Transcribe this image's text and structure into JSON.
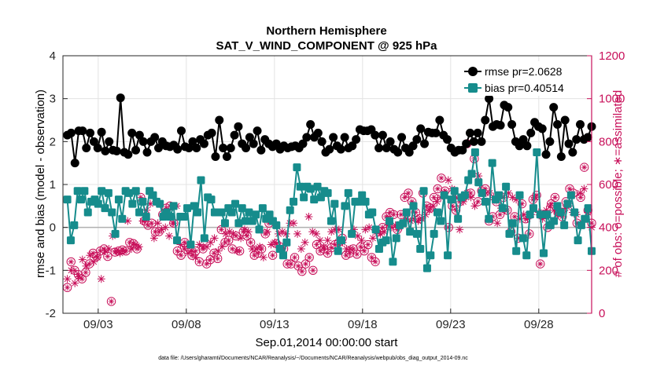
{
  "chart_data": {
    "type": "line",
    "title": "Northern Hemisphere",
    "subtitle": "SAT_V_WIND_COMPONENT @ 925 hPa",
    "xlabel": "Sep.01,2014 00:00:00 start",
    "ylabel": "rmse and bias (model - observation)",
    "ylabel_right": "# of obs: o=possible; ∗=assimilated",
    "ylim": [
      -2,
      4
    ],
    "ylim_right": [
      0,
      1200
    ],
    "xlim": [
      0,
      30
    ],
    "yticks": [
      -2,
      -1,
      0,
      1,
      2,
      3,
      4
    ],
    "yticks_right": [
      0,
      200,
      400,
      600,
      800,
      1000,
      1200
    ],
    "xticks": [
      {
        "value": 2,
        "label": "09/03"
      },
      {
        "value": 7,
        "label": "09/08"
      },
      {
        "value": 12,
        "label": "09/13"
      },
      {
        "value": 17,
        "label": "09/18"
      },
      {
        "value": 22,
        "label": "09/23"
      },
      {
        "value": 27,
        "label": "09/28"
      }
    ],
    "footnote": "data file: /Users/gharamti/Documents/NCAR/Reanalysis/~/Documents/NCAR/Reanalysis/webpub/obs_diag_output_2014-09.nc",
    "legend": [
      {
        "label": "rmse pr=2.0628",
        "color": "#000000"
      },
      {
        "label": "bias pr=0.40514",
        "color": "#168c8c"
      }
    ],
    "colors": {
      "rmse": "#000000",
      "bias": "#168c8c",
      "obs": "#c8105a",
      "zero_line": "#b0b0b0"
    },
    "series": [
      {
        "name": "rmse",
        "values": [
          2.15,
          2.2,
          1.5,
          2.25,
          2.25,
          1.85,
          2.2,
          2.0,
          1.85,
          2.22,
          1.78,
          2.0,
          1.8,
          1.78,
          3.02,
          1.75,
          1.7,
          2.2,
          1.8,
          2.15,
          2.0,
          1.75,
          2.0,
          2.1,
          1.85,
          2.0,
          1.9,
          1.88,
          1.92,
          1.82,
          2.25,
          1.88,
          1.85,
          2.0,
          1.85,
          2.05,
          1.95,
          2.15,
          2.2,
          1.65,
          2.5,
          1.85,
          1.65,
          1.85,
          2.15,
          2.35,
          1.95,
          1.85,
          2.1,
          1.95,
          2.25,
          1.8,
          2.05,
          1.95,
          1.88,
          1.95,
          1.82,
          1.9,
          1.85,
          1.88,
          1.9,
          1.85,
          1.95,
          2.1,
          2.4,
          2.1,
          2.2,
          2.0,
          1.75,
          1.82,
          2.1,
          1.9,
          1.82,
          2.1,
          1.85,
          1.9,
          2.05,
          2.28,
          2.25,
          2.25,
          2.28,
          2.15,
          1.85,
          2.15,
          1.85,
          2.0,
          1.82,
          1.75,
          2.1,
          1.85,
          1.75,
          1.9,
          2.05,
          2.3,
          1.95,
          2.22,
          2.2,
          2.2,
          2.5,
          2.15,
          2.05,
          1.85,
          1.75,
          1.8,
          1.8,
          1.95,
          2.2,
          2.0,
          2.2,
          2.0,
          2.5,
          3.0,
          2.35,
          2.4,
          2.38,
          2.85,
          2.8,
          2.4,
          2.0,
          1.9,
          2.05,
          1.9,
          2.2,
          2.45,
          2.35,
          2.3,
          1.7,
          2.0,
          2.8,
          2.4,
          1.65,
          2.5,
          1.95,
          1.75,
          2.05,
          2.4,
          2.05,
          2.1,
          2.35
        ]
      },
      {
        "name": "bias",
        "values": [
          0.65,
          -0.3,
          0.05,
          0.85,
          0.65,
          0.85,
          0.35,
          0.6,
          0.65,
          0.55,
          0.85,
          0.45,
          0.8,
          0.35,
          -0.15,
          0.65,
          0.2,
          0.85,
          0.8,
          0.55,
          0.85,
          0.35,
          0.6,
          0.25,
          0.85,
          0.75,
          0.6,
          0.55,
          0.25,
          0.35,
          0.25,
          0.5,
          -0.3,
          0.25,
          0.25,
          0.45,
          -0.4,
          0.5,
          0.35,
          1.1,
          -0.25,
          0.7,
          0.65,
          0.35,
          0.35,
          0.35,
          0.1,
          0.45,
          0.35,
          0.55,
          0.1,
          0.45,
          0.15,
          0.35,
          0.15,
          0.3,
          -0.05,
          0.45,
          0.2,
          0.3,
          0.15,
          0.05,
          -0.5,
          -0.65,
          -0.35,
          0.4,
          0.6,
          1.4,
          0.95,
          0.7,
          0.95,
          0.9,
          0.65,
          0.95,
          0.7,
          0.85,
          0.8,
          0.15,
          0.55,
          -0.55,
          -0.3,
          0.5,
          0.8,
          -0.15,
          0.6,
          0.6,
          0.75,
          0.6,
          0.3,
          0.35,
          -0.05,
          -0.5,
          -0.35,
          -0.3,
          0.15,
          -0.8,
          -0.25,
          0.05,
          0.1,
          0.35,
          -0.1,
          0.5,
          -0.15,
          -0.5,
          0.85,
          -0.95,
          -0.65,
          -0.15,
          0.35,
          0.15,
          0.75,
          -0.65,
          0.65,
          0.85,
          0.2,
          0.7,
          0.75,
          1.1,
          1.25,
          1.75,
          1.05,
          0.8,
          0.6,
          0.2,
          1.5,
          0.65,
          0.75,
          0.45,
          0.95,
          -0.15,
          0.1,
          -0.55,
          0.75,
          -0.25,
          -0.65,
          0.3,
          0.45,
          1.75,
          0.3,
          -0.6,
          0.3,
          0.05,
          0.15,
          0.5,
          0.35,
          0.05,
          0.55,
          0.75,
          0.35,
          -0.3,
          0.05,
          0.2,
          0.45,
          -0.55
        ]
      },
      {
        "name": "obs_possible",
        "values": [
          120,
          240,
          200,
          180,
          160,
          190,
          230,
          280,
          265,
          290,
          300,
          265,
          55,
          285,
          290,
          295,
          290,
          330,
          325,
          300,
          540,
          430,
          410,
          420,
          380,
          380,
          460,
          490,
          500,
          420,
          290,
          270,
          330,
          310,
          270,
          290,
          240,
          300,
          230,
          250,
          280,
          255,
          390,
          330,
          340,
          300,
          360,
          290,
          380,
          360,
          330,
          270,
          280,
          300,
          370,
          420,
          270,
          325,
          310,
          300,
          230,
          230,
          260,
          220,
          195,
          230,
          260,
          200,
          320,
          290,
          300,
          280,
          305,
          320,
          330,
          350,
          270,
          280,
          300,
          275,
          310,
          290,
          320,
          260,
          240,
          380,
          400,
          450,
          470,
          460,
          390,
          460,
          540,
          560,
          520,
          470,
          440,
          560,
          500,
          490,
          540,
          580,
          630,
          570,
          400,
          500,
          480,
          520,
          540,
          790,
          560,
          720,
          520,
          570,
          580,
          430,
          450,
          520,
          460,
          540,
          480,
          380,
          450,
          350,
          510,
          440,
          370,
          530,
          550,
          230,
          460,
          400,
          510,
          540,
          470,
          450,
          520,
          580,
          560,
          420,
          540,
          680,
          480,
          420
        ]
      },
      {
        "name": "obs_assimilated",
        "values": [
          160,
          200,
          140,
          170,
          250,
          220,
          270,
          240,
          260,
          160,
          290,
          300,
          360,
          290,
          280,
          290,
          430,
          300,
          320,
          310,
          430,
          480,
          510,
          350,
          420,
          390,
          400,
          360,
          420,
          500,
          320,
          300,
          280,
          290,
          260,
          320,
          310,
          310,
          330,
          350,
          290,
          310,
          370,
          380,
          370,
          290,
          350,
          390,
          380,
          300,
          300,
          310,
          260,
          380,
          320,
          330,
          370,
          380,
          370,
          420,
          420,
          370,
          300,
          330,
          450,
          380,
          370,
          340,
          310,
          340,
          380,
          390,
          390,
          330,
          300,
          300,
          390,
          360,
          340,
          390,
          400,
          350,
          380,
          370,
          380,
          410,
          400,
          410,
          400,
          420,
          440,
          430,
          440,
          430,
          440,
          460,
          480,
          500,
          520,
          540,
          560,
          620,
          580,
          540,
          390,
          520,
          560,
          540,
          500,
          640,
          560,
          560,
          560,
          540,
          420,
          490,
          480,
          560,
          540,
          530,
          440,
          460,
          440,
          460,
          540,
          470,
          440,
          480,
          500,
          480,
          460,
          470,
          490,
          500,
          470,
          460,
          560,
          580,
          470,
          400
        ]
      }
    ]
  }
}
